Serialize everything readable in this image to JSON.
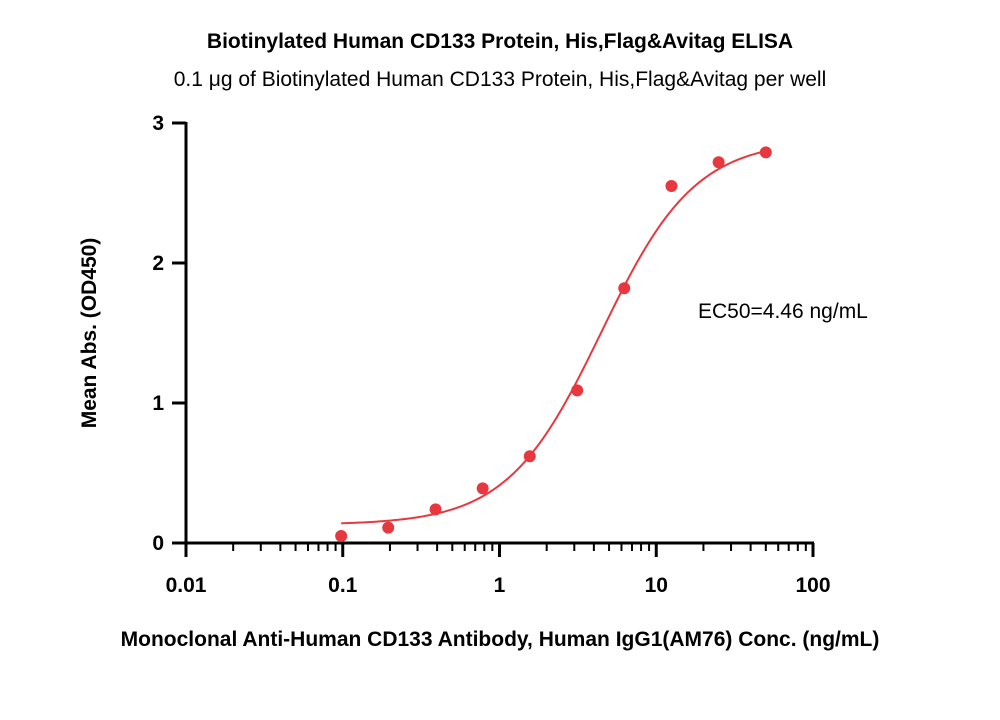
{
  "chart_data": {
    "type": "scatter",
    "title": "Biotinylated Human CD133 Protein, His,Flag&Avitag ELISA",
    "subtitle": "0.1 μg of Biotinylated Human CD133 Protein, His,Flag&Avitag per well",
    "xlabel": "Monoclonal Anti-Human CD133 Antibody, Human IgG1(AM76) Conc. (ng/mL)",
    "ylabel": "Mean Abs. (OD450)",
    "x_scale": "log",
    "xlim": [
      0.01,
      100
    ],
    "ylim": [
      0,
      3
    ],
    "x_ticks": [
      0.01,
      0.1,
      1,
      10,
      100
    ],
    "x_tick_labels": [
      "0.01",
      "0.1",
      "1",
      "10",
      "100"
    ],
    "y_ticks": [
      0,
      1,
      2,
      3
    ],
    "y_tick_labels": [
      "0",
      "1",
      "2",
      "3"
    ],
    "grid": false,
    "color": "#e8383f",
    "series": [
      {
        "x": [
          0.0977,
          0.195,
          0.391,
          0.781,
          1.56,
          3.13,
          6.25,
          12.5,
          25,
          50
        ],
        "y": [
          0.05,
          0.11,
          0.24,
          0.39,
          0.62,
          1.09,
          1.82,
          2.55,
          2.72,
          2.79
        ]
      }
    ],
    "fit_curve": {
      "type": "4PL",
      "bottom": 0.13,
      "top": 2.88,
      "ec50": 4.46,
      "hill": 1.45,
      "x_range": [
        0.0977,
        50
      ]
    },
    "annotations": [
      {
        "text": "EC50=4.46 ng/mL"
      }
    ]
  }
}
